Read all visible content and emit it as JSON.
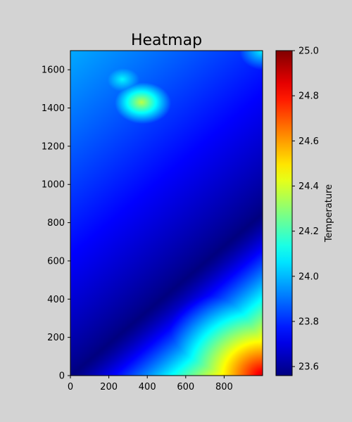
{
  "chart_data": {
    "type": "heatmap",
    "title": "Heatmap",
    "xlabel": "",
    "ylabel": "",
    "colorbar_label": "Temperature",
    "colormap": "jet",
    "xlim": [
      0,
      1000
    ],
    "ylim": [
      0,
      1700
    ],
    "x_ticks": [
      0,
      200,
      400,
      600,
      800
    ],
    "y_ticks": [
      0,
      200,
      400,
      600,
      800,
      1000,
      1200,
      1400,
      1600
    ],
    "value_range": [
      23.56,
      25.0
    ],
    "colorbar_ticks": [
      23.6,
      23.8,
      24.0,
      24.2,
      24.4,
      24.6,
      24.8,
      25.0
    ],
    "diagonal_min_line": {
      "from": [
        0,
        0
      ],
      "to": [
        1000,
        850
      ]
    },
    "hotspots": [
      {
        "x": 1000,
        "y": 0,
        "value": 24.95
      },
      {
        "x": 370,
        "y": 1430,
        "value": 24.38
      },
      {
        "x": 270,
        "y": 1550,
        "value": 24.1
      },
      {
        "x": 1000,
        "y": 1700,
        "value": 24.1
      }
    ]
  }
}
